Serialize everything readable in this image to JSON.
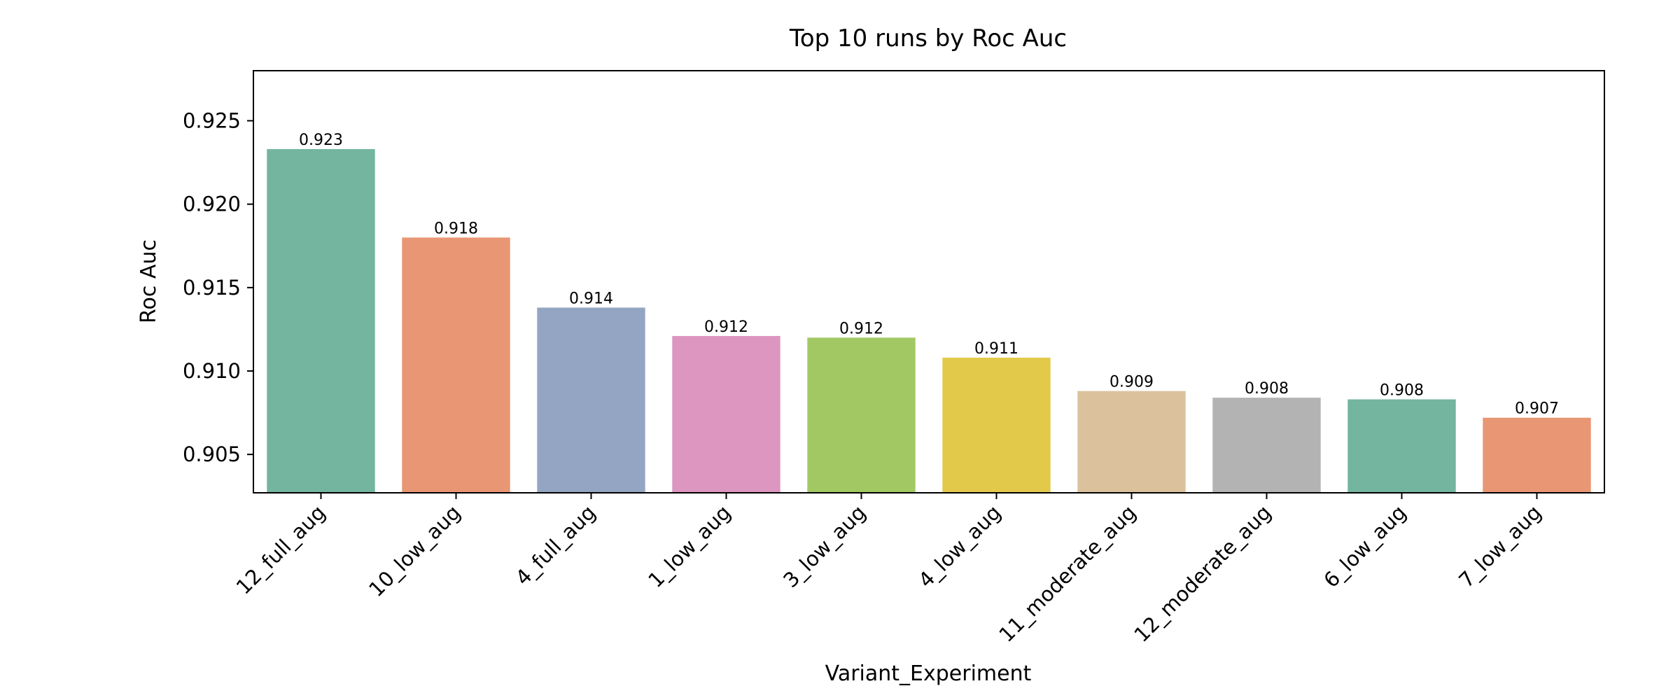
{
  "chart_data": {
    "type": "bar",
    "title": "Top 10 runs by Roc Auc",
    "xlabel": "Variant_Experiment",
    "ylabel": "Roc Auc",
    "categories": [
      "12_full_aug",
      "10_low_aug",
      "4_full_aug",
      "1_low_aug",
      "3_low_aug",
      "4_low_aug",
      "11_moderate_aug",
      "12_moderate_aug",
      "6_low_aug",
      "7_low_aug"
    ],
    "values": [
      0.9233,
      0.918,
      0.9138,
      0.9121,
      0.912,
      0.9108,
      0.9088,
      0.9084,
      0.9083,
      0.9072
    ],
    "data_labels": [
      "0.923",
      "0.918",
      "0.914",
      "0.912",
      "0.912",
      "0.911",
      "0.909",
      "0.908",
      "0.908",
      "0.907"
    ],
    "colors": [
      "#73b59e",
      "#e89673",
      "#94a5c4",
      "#dc96c0",
      "#a2c864",
      "#e3c94a",
      "#dbc29c",
      "#b3b3b3",
      "#73b59e",
      "#e89673"
    ],
    "ylim": [
      0.9027,
      0.928
    ],
    "yticks": [
      0.905,
      0.91,
      0.915,
      0.92,
      0.925
    ],
    "ytick_labels": [
      "0.905",
      "0.910",
      "0.915",
      "0.920",
      "0.925"
    ],
    "grid": false,
    "legend": "none"
  }
}
